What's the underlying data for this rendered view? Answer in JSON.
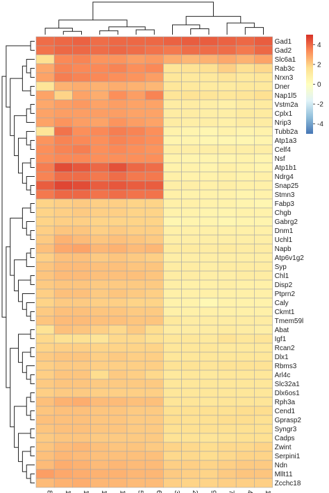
{
  "chart_data": {
    "type": "heatmap",
    "title": "",
    "xlabel": "",
    "ylabel": "",
    "columns": [
      "8",
      "12",
      "14",
      "10",
      "13",
      "5",
      "6",
      "3",
      "2",
      "9",
      "7",
      "4",
      "11"
    ],
    "rows": [
      "Gad1",
      "Gad2",
      "Slc6a1",
      "Rab3c",
      "Nrxn3",
      "Dner",
      "Nap1l5",
      "Vstm2a",
      "Cplx1",
      "Nrip3",
      "Tubb2a",
      "Atp1a3",
      "Celf4",
      "Nsf",
      "Atp1b1",
      "Ndrg4",
      "Snap25",
      "Stmn3",
      "Fabp3",
      "Chgb",
      "Gabrg2",
      "Dnm1",
      "Uchl1",
      "Napb",
      "Atp6v1g2",
      "Syp",
      "Chl1",
      "Disp2",
      "Ptprn2",
      "Caly",
      "Ckmt1",
      "Tmem59l",
      "Abat",
      "Igf1",
      "Rcan2",
      "Dlx1",
      "Rbms3",
      "Arl4c",
      "Slc32a1",
      "Dlx6os1",
      "Rph3a",
      "Cend1",
      "Gprasp2",
      "Syngr3",
      "Cadps",
      "Zwint",
      "Serpini1",
      "Ndn",
      "Mllt11",
      "Zcchc18"
    ],
    "values": [
      [
        3.9,
        4.0,
        4.1,
        3.9,
        4.0,
        4.0,
        4.0,
        4.1,
        4.2,
        4.2,
        4.1,
        4.0,
        4.2
      ],
      [
        3.8,
        4.0,
        4.0,
        3.9,
        4.0,
        3.9,
        3.8,
        3.7,
        3.9,
        3.9,
        3.9,
        3.7,
        4.0
      ],
      [
        1.6,
        3.4,
        3.5,
        3.2,
        3.2,
        3.0,
        3.1,
        2.7,
        2.5,
        2.6,
        2.8,
        2.6,
        2.9
      ],
      [
        2.8,
        3.5,
        3.4,
        3.4,
        3.5,
        3.3,
        3.4,
        1.4,
        1.5,
        1.6,
        2.0,
        1.6,
        1.8
      ],
      [
        2.9,
        3.6,
        3.5,
        3.4,
        3.3,
        3.2,
        3.0,
        1.3,
        1.2,
        1.2,
        1.4,
        1.2,
        1.3
      ],
      [
        1.4,
        2.6,
        2.7,
        2.6,
        2.7,
        2.6,
        2.5,
        1.3,
        1.2,
        1.1,
        1.1,
        1.2,
        1.2
      ],
      [
        2.9,
        1.9,
        2.9,
        2.7,
        3.3,
        3.0,
        3.5,
        1.4,
        1.5,
        1.4,
        1.3,
        1.4,
        1.6
      ],
      [
        2.8,
        3.0,
        3.1,
        2.9,
        3.0,
        2.9,
        2.9,
        1.0,
        1.0,
        0.9,
        0.8,
        1.0,
        1.1
      ],
      [
        2.9,
        3.0,
        3.0,
        3.0,
        3.0,
        2.9,
        2.9,
        1.0,
        1.0,
        0.9,
        0.9,
        1.1,
        1.1
      ],
      [
        2.9,
        3.2,
        3.0,
        2.9,
        3.2,
        3.0,
        2.9,
        1.0,
        0.9,
        0.9,
        0.8,
        1.0,
        1.0
      ],
      [
        1.4,
        3.8,
        3.3,
        3.4,
        3.6,
        3.5,
        3.3,
        0.7,
        0.6,
        0.5,
        0.7,
        0.6,
        0.7
      ],
      [
        3.2,
        3.5,
        3.4,
        3.3,
        3.5,
        3.4,
        3.3,
        0.6,
        0.6,
        0.5,
        0.5,
        0.5,
        0.6
      ],
      [
        3.3,
        3.5,
        3.6,
        3.3,
        3.4,
        3.3,
        3.2,
        0.9,
        0.9,
        0.9,
        0.9,
        0.9,
        0.9
      ],
      [
        3.3,
        3.4,
        3.4,
        3.3,
        3.3,
        3.3,
        3.3,
        0.7,
        0.6,
        0.6,
        0.6,
        0.7,
        0.6
      ],
      [
        3.6,
        4.5,
        4.3,
        4.0,
        4.4,
        4.0,
        3.9,
        0.7,
        0.7,
        0.6,
        0.8,
        0.7,
        0.6
      ],
      [
        3.5,
        3.9,
        3.9,
        3.7,
        3.9,
        3.7,
        3.7,
        0.8,
        0.7,
        0.7,
        0.8,
        0.7,
        0.8
      ],
      [
        4.2,
        4.6,
        4.5,
        4.2,
        4.3,
        4.2,
        4.2,
        0.9,
        0.9,
        0.8,
        0.9,
        0.8,
        0.8
      ],
      [
        3.7,
        4.0,
        4.0,
        3.8,
        3.9,
        3.8,
        3.8,
        0.8,
        0.7,
        0.7,
        0.7,
        0.6,
        0.7
      ],
      [
        1.9,
        2.0,
        2.1,
        2.0,
        2.0,
        1.9,
        1.9,
        0.8,
        0.8,
        0.7,
        0.7,
        0.6,
        0.5
      ],
      [
        1.9,
        2.0,
        2.1,
        2.0,
        2.0,
        1.9,
        1.9,
        0.7,
        0.7,
        0.6,
        0.6,
        0.7,
        0.7
      ],
      [
        1.9,
        2.0,
        2.0,
        1.9,
        1.9,
        1.9,
        1.9,
        0.5,
        0.6,
        0.6,
        0.5,
        0.6,
        0.6
      ],
      [
        2.0,
        2.2,
        2.2,
        2.0,
        2.1,
        2.0,
        2.0,
        0.8,
        0.8,
        0.8,
        0.8,
        0.8,
        0.8
      ],
      [
        2.1,
        2.6,
        2.4,
        2.2,
        2.3,
        2.2,
        2.1,
        0.9,
        0.9,
        0.9,
        0.9,
        0.9,
        0.9
      ],
      [
        2.3,
        2.8,
        2.9,
        2.5,
        2.6,
        2.4,
        2.5,
        1.1,
        1.1,
        1.0,
        1.1,
        1.0,
        1.0
      ],
      [
        2.0,
        2.3,
        2.3,
        2.1,
        2.2,
        2.1,
        2.0,
        0.9,
        0.9,
        0.9,
        0.9,
        0.9,
        0.9
      ],
      [
        2.2,
        2.4,
        2.4,
        2.3,
        2.3,
        2.2,
        2.2,
        1.0,
        1.0,
        0.9,
        1.0,
        1.0,
        1.0
      ],
      [
        2.2,
        2.4,
        2.4,
        2.3,
        2.3,
        2.3,
        2.2,
        1.0,
        1.0,
        0.9,
        0.9,
        1.0,
        1.0
      ],
      [
        2.1,
        2.2,
        2.2,
        2.1,
        2.1,
        2.1,
        2.1,
        0.9,
        0.8,
        0.8,
        0.9,
        0.8,
        0.8
      ],
      [
        2.0,
        2.3,
        2.3,
        2.1,
        2.2,
        2.1,
        2.0,
        0.8,
        0.8,
        0.8,
        0.8,
        0.8,
        0.8
      ],
      [
        1.9,
        2.1,
        2.1,
        2.0,
        2.0,
        1.9,
        1.9,
        0.7,
        0.7,
        0.4,
        0.7,
        0.7,
        0.7
      ],
      [
        2.1,
        2.3,
        2.3,
        2.2,
        2.2,
        2.1,
        2.1,
        0.8,
        0.8,
        0.8,
        0.8,
        0.8,
        0.8
      ],
      [
        2.2,
        2.4,
        2.4,
        2.3,
        2.3,
        2.2,
        2.2,
        1.2,
        1.0,
        1.0,
        1.0,
        1.0,
        1.0
      ],
      [
        1.5,
        2.3,
        2.2,
        2.0,
        1.8,
        2.1,
        1.7,
        1.0,
        1.0,
        1.0,
        1.1,
        1.0,
        0.9
      ],
      [
        1.8,
        1.6,
        1.6,
        1.4,
        1.8,
        1.8,
        1.6,
        1.3,
        1.3,
        1.2,
        1.5,
        1.3,
        1.4
      ],
      [
        1.9,
        2.0,
        2.0,
        1.9,
        1.9,
        1.9,
        1.9,
        1.3,
        1.3,
        1.3,
        1.2,
        1.2,
        1.2
      ],
      [
        2.1,
        2.2,
        2.2,
        2.0,
        2.1,
        2.0,
        2.0,
        1.3,
        1.3,
        1.3,
        1.3,
        1.3,
        1.3
      ],
      [
        2.0,
        2.1,
        2.1,
        2.0,
        2.0,
        2.0,
        2.0,
        1.5,
        1.5,
        1.4,
        1.5,
        1.5,
        1.5
      ],
      [
        2.0,
        2.2,
        2.2,
        1.7,
        2.1,
        2.0,
        1.8,
        1.2,
        1.3,
        1.2,
        1.3,
        1.3,
        1.3
      ],
      [
        2.1,
        2.2,
        2.2,
        2.1,
        2.1,
        2.1,
        2.1,
        1.3,
        1.3,
        1.3,
        1.3,
        1.3,
        1.3
      ],
      [
        2.0,
        2.1,
        2.1,
        2.0,
        2.0,
        2.0,
        2.0,
        1.3,
        1.3,
        1.3,
        1.3,
        1.3,
        1.3
      ],
      [
        2.3,
        2.6,
        2.7,
        2.4,
        2.4,
        2.3,
        2.3,
        1.4,
        1.4,
        1.3,
        1.4,
        1.4,
        1.4
      ],
      [
        2.2,
        2.3,
        2.3,
        2.2,
        2.2,
        2.1,
        2.1,
        1.6,
        1.6,
        1.6,
        1.6,
        1.7,
        1.7
      ],
      [
        2.3,
        2.3,
        2.3,
        2.2,
        2.2,
        2.1,
        2.1,
        1.7,
        1.6,
        1.6,
        1.7,
        1.7,
        1.6
      ],
      [
        2.2,
        2.3,
        2.3,
        2.2,
        2.2,
        2.1,
        2.1,
        1.6,
        1.6,
        1.6,
        1.6,
        1.6,
        1.6
      ],
      [
        2.1,
        2.2,
        2.2,
        2.1,
        2.1,
        2.1,
        2.1,
        1.5,
        1.5,
        1.4,
        1.5,
        1.6,
        1.6
      ],
      [
        2.2,
        2.4,
        2.5,
        2.3,
        2.2,
        2.2,
        2.1,
        1.9,
        1.8,
        1.7,
        1.8,
        1.8,
        1.9
      ],
      [
        2.3,
        2.5,
        2.4,
        2.3,
        2.3,
        2.3,
        2.3,
        1.8,
        1.8,
        1.7,
        1.8,
        1.9,
        1.9
      ],
      [
        2.4,
        2.7,
        2.6,
        2.4,
        2.5,
        2.4,
        2.4,
        2.0,
        2.0,
        1.9,
        2.0,
        2.1,
        2.1
      ],
      [
        3.0,
        2.8,
        2.7,
        2.6,
        2.6,
        2.5,
        2.5,
        2.1,
        2.0,
        1.9,
        2.1,
        2.2,
        2.2
      ],
      [
        2.4,
        2.6,
        2.7,
        2.5,
        2.5,
        2.4,
        2.4,
        2.0,
        1.9,
        1.9,
        2.0,
        2.0,
        2.0
      ]
    ],
    "colorbar": {
      "min": -5,
      "max": 5,
      "ticks": [
        4,
        2,
        0,
        -2,
        -4
      ],
      "tick_labels": [
        "4",
        "2",
        "0",
        "-2",
        "-4"
      ],
      "colors": [
        "#4575B4",
        "#91BFDB",
        "#E0F3F8",
        "#FFFFBF",
        "#FEE090",
        "#FC8D59",
        "#D73027"
      ]
    },
    "cell_border_color": "#A8A8A8",
    "row_dendrogram": true,
    "column_dendrogram": true,
    "grid": false,
    "legend": "right"
  }
}
